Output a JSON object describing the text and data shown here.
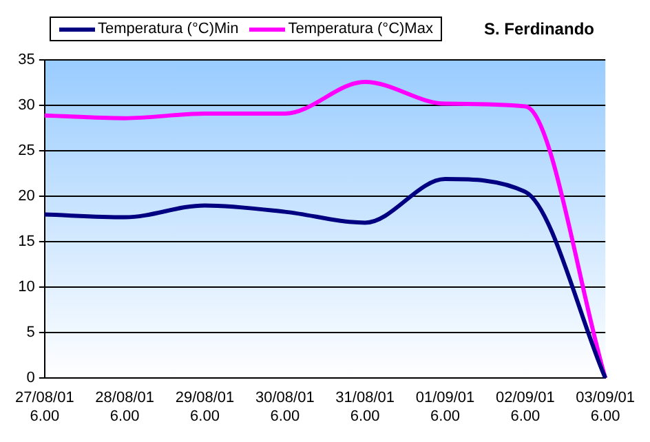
{
  "chart_data": {
    "type": "line",
    "title": "S. Ferdinando",
    "categories": [
      "27/08/01\n6.00",
      "28/08/01\n6.00",
      "29/08/01\n6.00",
      "30/08/01\n6.00",
      "31/08/01\n6.00",
      "01/09/01\n6.00",
      "02/09/01\n6.00",
      "03/09/01\n6.00"
    ],
    "series": [
      {
        "name": "Temperatura (°C)Min",
        "color": "#000080",
        "values": [
          18,
          17.7,
          19,
          18.3,
          17.1,
          21.9,
          20.5,
          0
        ]
      },
      {
        "name": "Temperatura (°C)Max",
        "color": "#ff00ff",
        "values": [
          28.9,
          28.6,
          29.1,
          29.1,
          32.6,
          30.2,
          29.9,
          0
        ]
      }
    ],
    "ylim": [
      0,
      35
    ],
    "yticks": [
      0,
      5,
      10,
      15,
      20,
      25,
      30,
      35
    ],
    "grid": "y",
    "legend": "top left",
    "marker": "none",
    "line_style": "solid"
  }
}
